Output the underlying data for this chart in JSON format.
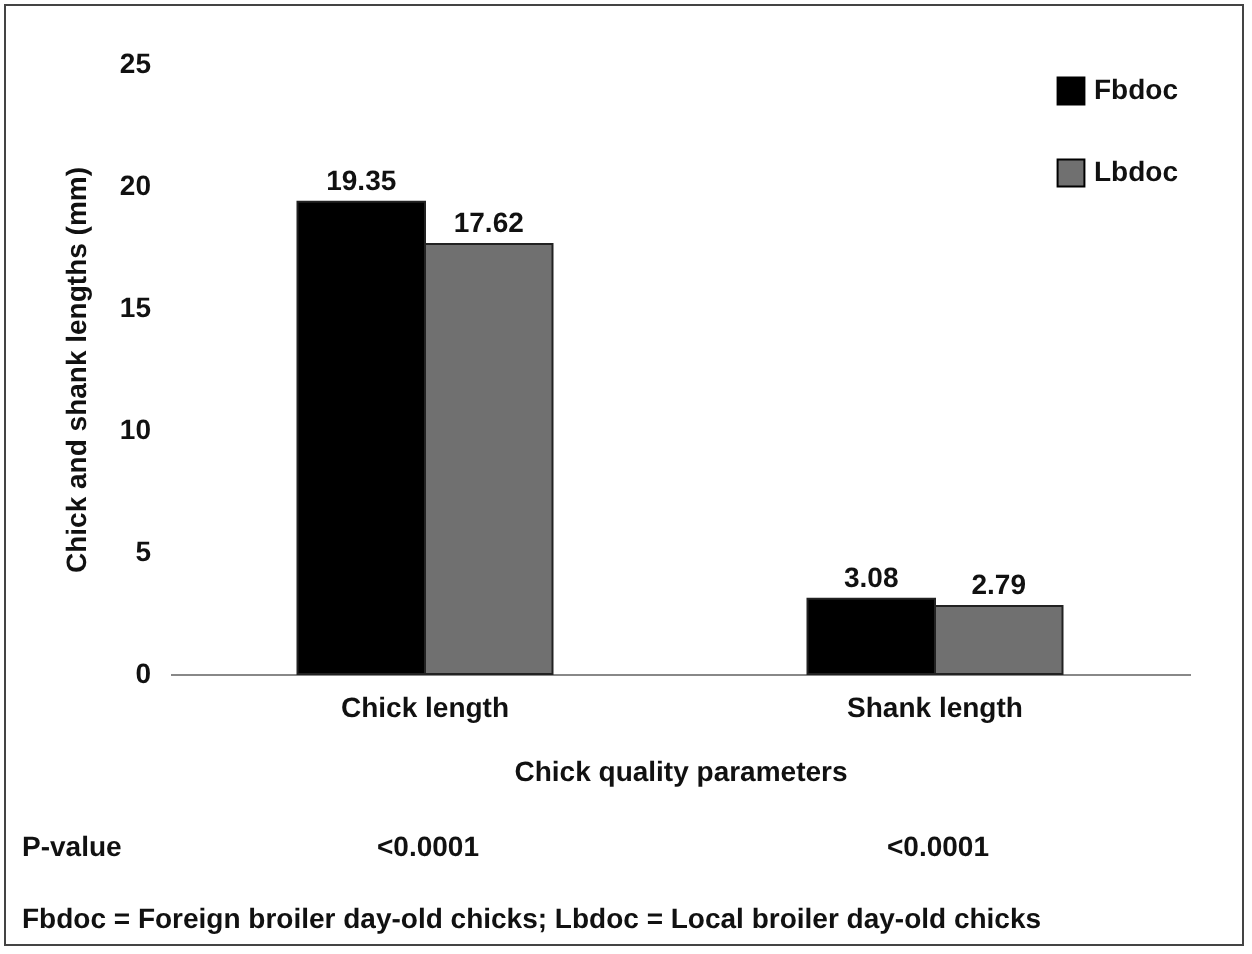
{
  "chart_data": {
    "type": "bar",
    "xlabel": "Chick quality parameters",
    "ylabel": "Chick and shank lengths (mm)",
    "categories": [
      "Chick length",
      "Shank length"
    ],
    "series": [
      {
        "name": "Fbdoc",
        "color": "#000000",
        "values": [
          19.35,
          3.08
        ]
      },
      {
        "name": "Lbdoc",
        "color": "#707070",
        "values": [
          17.62,
          2.79
        ]
      }
    ],
    "ylim": [
      0,
      25
    ],
    "yticks": [
      0,
      5,
      10,
      15,
      20,
      25
    ],
    "grid": false,
    "legend": "top right",
    "data_labels": true,
    "annotations": [
      "P-value",
      "<0.0001",
      "<0.0001",
      "Fbdoc = Foreign broiler day-old chicks; Lbdoc = Local broiler day-old chicks"
    ]
  }
}
